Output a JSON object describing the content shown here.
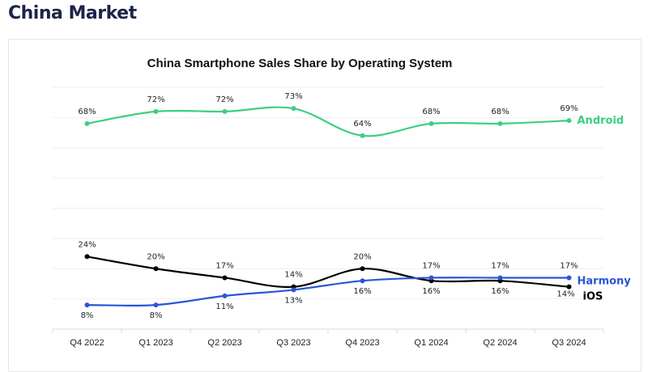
{
  "page_heading": "China Market",
  "chart_data": {
    "type": "line",
    "title": "China Smartphone Sales Share by Operating System",
    "categories": [
      "Q4 2022",
      "Q1 2023",
      "Q2 2023",
      "Q3 2023",
      "Q4 2023",
      "Q1 2024",
      "Q2 2024",
      "Q3 2024"
    ],
    "ylim": [
      0,
      80
    ],
    "grid": true,
    "legend": "inline-right",
    "series": [
      {
        "name": "Android",
        "color": "#3ecf7e",
        "values": [
          68,
          72,
          72,
          73,
          64,
          68,
          68,
          69
        ],
        "labels": [
          "68%",
          "72%",
          "72%",
          "73%",
          "64%",
          "68%",
          "68%",
          "69%"
        ]
      },
      {
        "name": "iOS",
        "color": "#000000",
        "values": [
          24,
          20,
          17,
          14,
          20,
          16,
          16,
          14
        ],
        "labels": [
          "24%",
          "20%",
          "17%",
          "14%",
          "20%",
          "16%",
          "16%",
          "14%"
        ]
      },
      {
        "name": "Harmony",
        "color": "#2a55d6",
        "values": [
          8,
          8,
          11,
          13,
          16,
          17,
          17,
          17
        ],
        "labels": [
          "8%",
          "8%",
          "11%",
          "13%",
          "16%",
          "17%",
          "17%",
          "17%"
        ]
      }
    ]
  }
}
